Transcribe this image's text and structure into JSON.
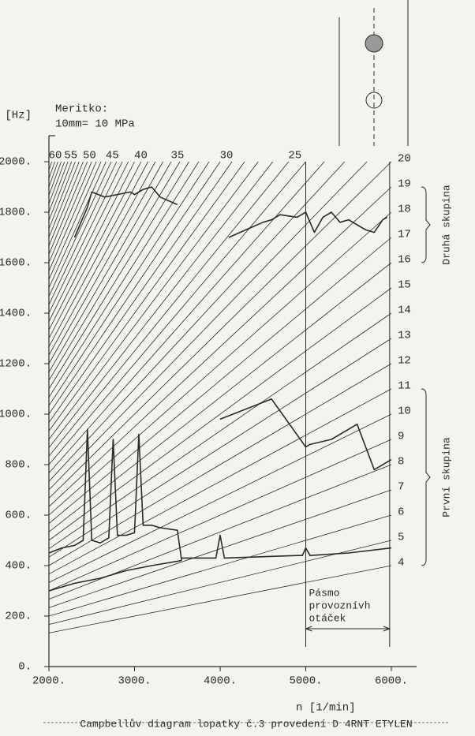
{
  "chart_data": {
    "type": "campbell",
    "title": "Campbellův diagram lopatky č.3 provedení D 4RNT ETYLEN",
    "scale_note": [
      "Meritko:",
      "10mm= 10 MPa"
    ],
    "y_label": "[Hz]",
    "x_label": "n  [1/min]",
    "xlim": [
      2000,
      6000
    ],
    "ylim": [
      0,
      2000
    ],
    "xticks": [
      {
        "value": 2000,
        "label": "2000."
      },
      {
        "value": 3000,
        "label": "3000."
      },
      {
        "value": 4000,
        "label": "4000."
      },
      {
        "value": 5000,
        "label": "5000."
      },
      {
        "value": 6000,
        "label": "6000."
      }
    ],
    "yticks": [
      {
        "value": 0,
        "label": "0."
      },
      {
        "value": 200,
        "label": "200."
      },
      {
        "value": 400,
        "label": "400."
      },
      {
        "value": 600,
        "label": "600."
      },
      {
        "value": 800,
        "label": "800."
      },
      {
        "value": 1000,
        "label": "1000."
      },
      {
        "value": 1200,
        "label": "1200."
      },
      {
        "value": 1400,
        "label": "1400."
      },
      {
        "value": 1600,
        "label": "1600."
      },
      {
        "value": 1800,
        "label": "1800."
      },
      {
        "value": 2000,
        "label": "2000."
      }
    ],
    "harmonics": [
      4,
      5,
      6,
      7,
      8,
      9,
      10,
      11,
      12,
      13,
      14,
      15,
      16,
      17,
      18,
      19,
      20,
      21,
      22,
      23,
      24,
      25,
      26,
      27,
      28,
      29,
      30,
      31,
      32,
      33,
      34,
      35,
      36,
      37,
      38,
      39,
      40,
      41,
      42,
      43,
      44,
      45,
      46,
      47,
      48,
      49,
      50,
      51,
      52,
      53,
      54,
      55,
      56,
      57,
      58,
      59,
      60
    ],
    "groups": [
      {
        "label": "Druhá skupina",
        "range": [
          1600,
          1900
        ]
      },
      {
        "label": "První skupina",
        "range": [
          400,
          1100
        ]
      }
    ],
    "operating_band": [
      5000,
      5980
    ],
    "band_label": [
      "Pásmo",
      "provoznívh",
      "otáček"
    ],
    "color": "#2a2a2a",
    "series": [
      {
        "x": [
          2300,
          2450,
          2500,
          2650,
          2800,
          2950,
          3000,
          3100,
          3200,
          3300,
          3500
        ],
        "values": [
          1700,
          1820,
          1880,
          1860,
          1870,
          1880,
          1870,
          1890,
          1900,
          1860,
          1830
        ]
      },
      {
        "x": [
          4100,
          4300,
          4500,
          4600,
          4700,
          4900,
          5000,
          5100,
          5200,
          5300,
          5400,
          5500,
          5600,
          5700,
          5800,
          5900,
          5950
        ],
        "values": [
          1700,
          1730,
          1760,
          1770,
          1790,
          1780,
          1800,
          1720,
          1780,
          1800,
          1760,
          1770,
          1750,
          1730,
          1720,
          1770,
          1780
        ]
      },
      {
        "x": [
          2000,
          2150,
          2300,
          2400,
          2450,
          2500,
          2600,
          2700,
          2750,
          2800,
          2900,
          3000,
          3050,
          3100,
          3200,
          3300,
          3500,
          3550
        ],
        "values": [
          450,
          470,
          480,
          500,
          940,
          500,
          490,
          510,
          900,
          520,
          520,
          530,
          920,
          560,
          560,
          550,
          540,
          420
        ]
      },
      {
        "x": [
          2000,
          2300,
          2600,
          2900,
          3200,
          3550
        ],
        "values": [
          300,
          330,
          350,
          380,
          400,
          420
        ]
      },
      {
        "x": [
          3550,
          3950,
          4000,
          4050,
          4900,
          4960,
          5000,
          5050,
          5500,
          6000
        ],
        "values": [
          430,
          430,
          520,
          430,
          440,
          440,
          470,
          440,
          450,
          470
        ]
      },
      {
        "x": [
          4000,
          4300,
          4600,
          5000,
          5050,
          5300,
          5600,
          5800,
          6000
        ],
        "values": [
          980,
          1020,
          1060,
          870,
          880,
          900,
          960,
          780,
          820
        ]
      }
    ]
  }
}
